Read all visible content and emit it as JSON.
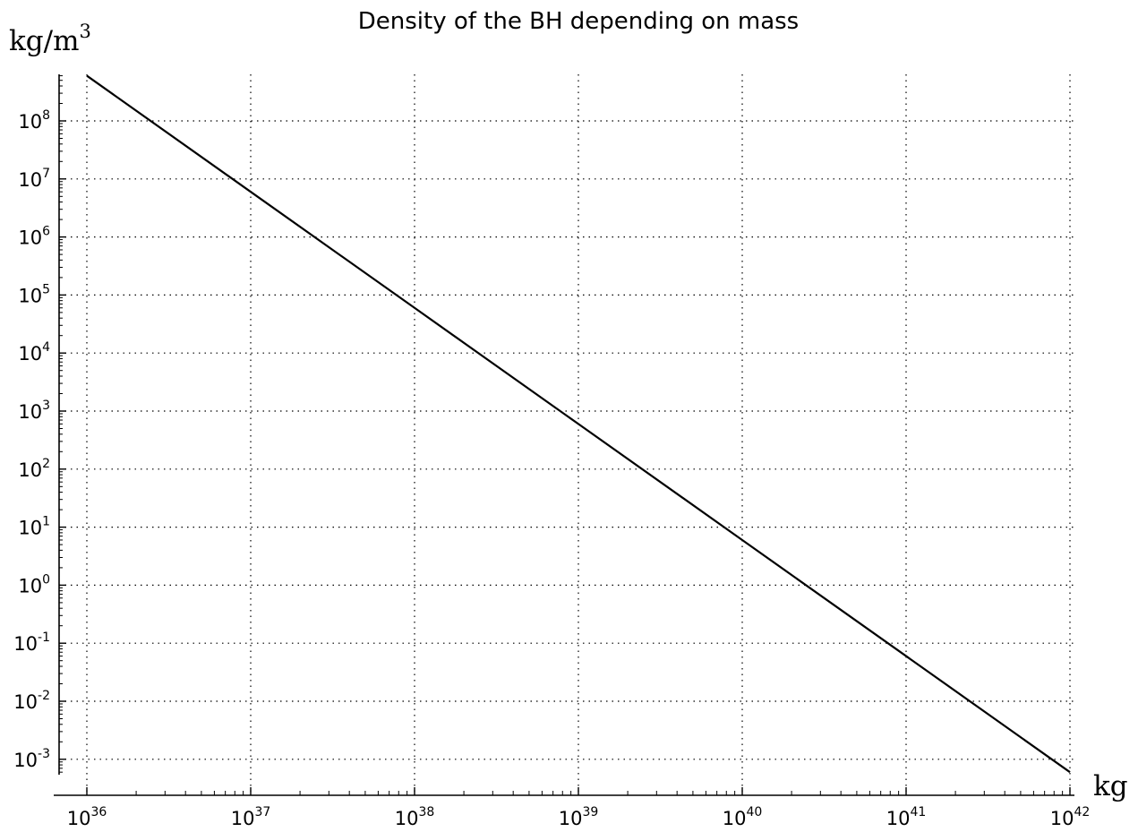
{
  "chart_data": {
    "type": "line",
    "title": "Density of the BH depending on mass",
    "xlabel": "kg",
    "ylabel": {
      "base": "kg/m",
      "sup": "3"
    },
    "x_scale": "log",
    "y_scale": "log",
    "xlim": [
      1e+36,
      1e+42
    ],
    "ylim": [
      0.0005,
      700000000
    ],
    "grid": true,
    "grid_style": "dotted",
    "line_color": "#000000",
    "x_ticks": [
      {
        "base": "10",
        "exp": "36",
        "value": 1e+36
      },
      {
        "base": "10",
        "exp": "37",
        "value": 1e+37
      },
      {
        "base": "10",
        "exp": "38",
        "value": 1e+38
      },
      {
        "base": "10",
        "exp": "39",
        "value": 1e+39
      },
      {
        "base": "10",
        "exp": "40",
        "value": 1e+40
      },
      {
        "base": "10",
        "exp": "41",
        "value": 1e+41
      },
      {
        "base": "10",
        "exp": "42",
        "value": 1e+42
      }
    ],
    "y_ticks": [
      {
        "base": "10",
        "exp": "8",
        "value": 100000000.0
      },
      {
        "base": "10",
        "exp": "7",
        "value": 10000000.0
      },
      {
        "base": "10",
        "exp": "6",
        "value": 1000000.0
      },
      {
        "base": "10",
        "exp": "5",
        "value": 100000.0
      },
      {
        "base": "10",
        "exp": "4",
        "value": 10000.0
      },
      {
        "base": "10",
        "exp": "3",
        "value": 1000.0
      },
      {
        "base": "10",
        "exp": "2",
        "value": 100.0
      },
      {
        "base": "10",
        "exp": "1",
        "value": 10.0
      },
      {
        "base": "10",
        "exp": "0",
        "value": 1
      },
      {
        "base": "10",
        "exp": "-1",
        "value": 0.1
      },
      {
        "base": "10",
        "exp": "-2",
        "value": 0.01
      },
      {
        "base": "10",
        "exp": "-3",
        "value": 0.001
      }
    ],
    "series": [
      {
        "x": [
          1e+36,
          1e+37,
          1e+38,
          1e+39,
          1e+40,
          1e+41,
          1e+42
        ],
        "y": [
          600000000,
          6000000,
          60000,
          600,
          6,
          0.06,
          0.0006
        ]
      }
    ]
  }
}
